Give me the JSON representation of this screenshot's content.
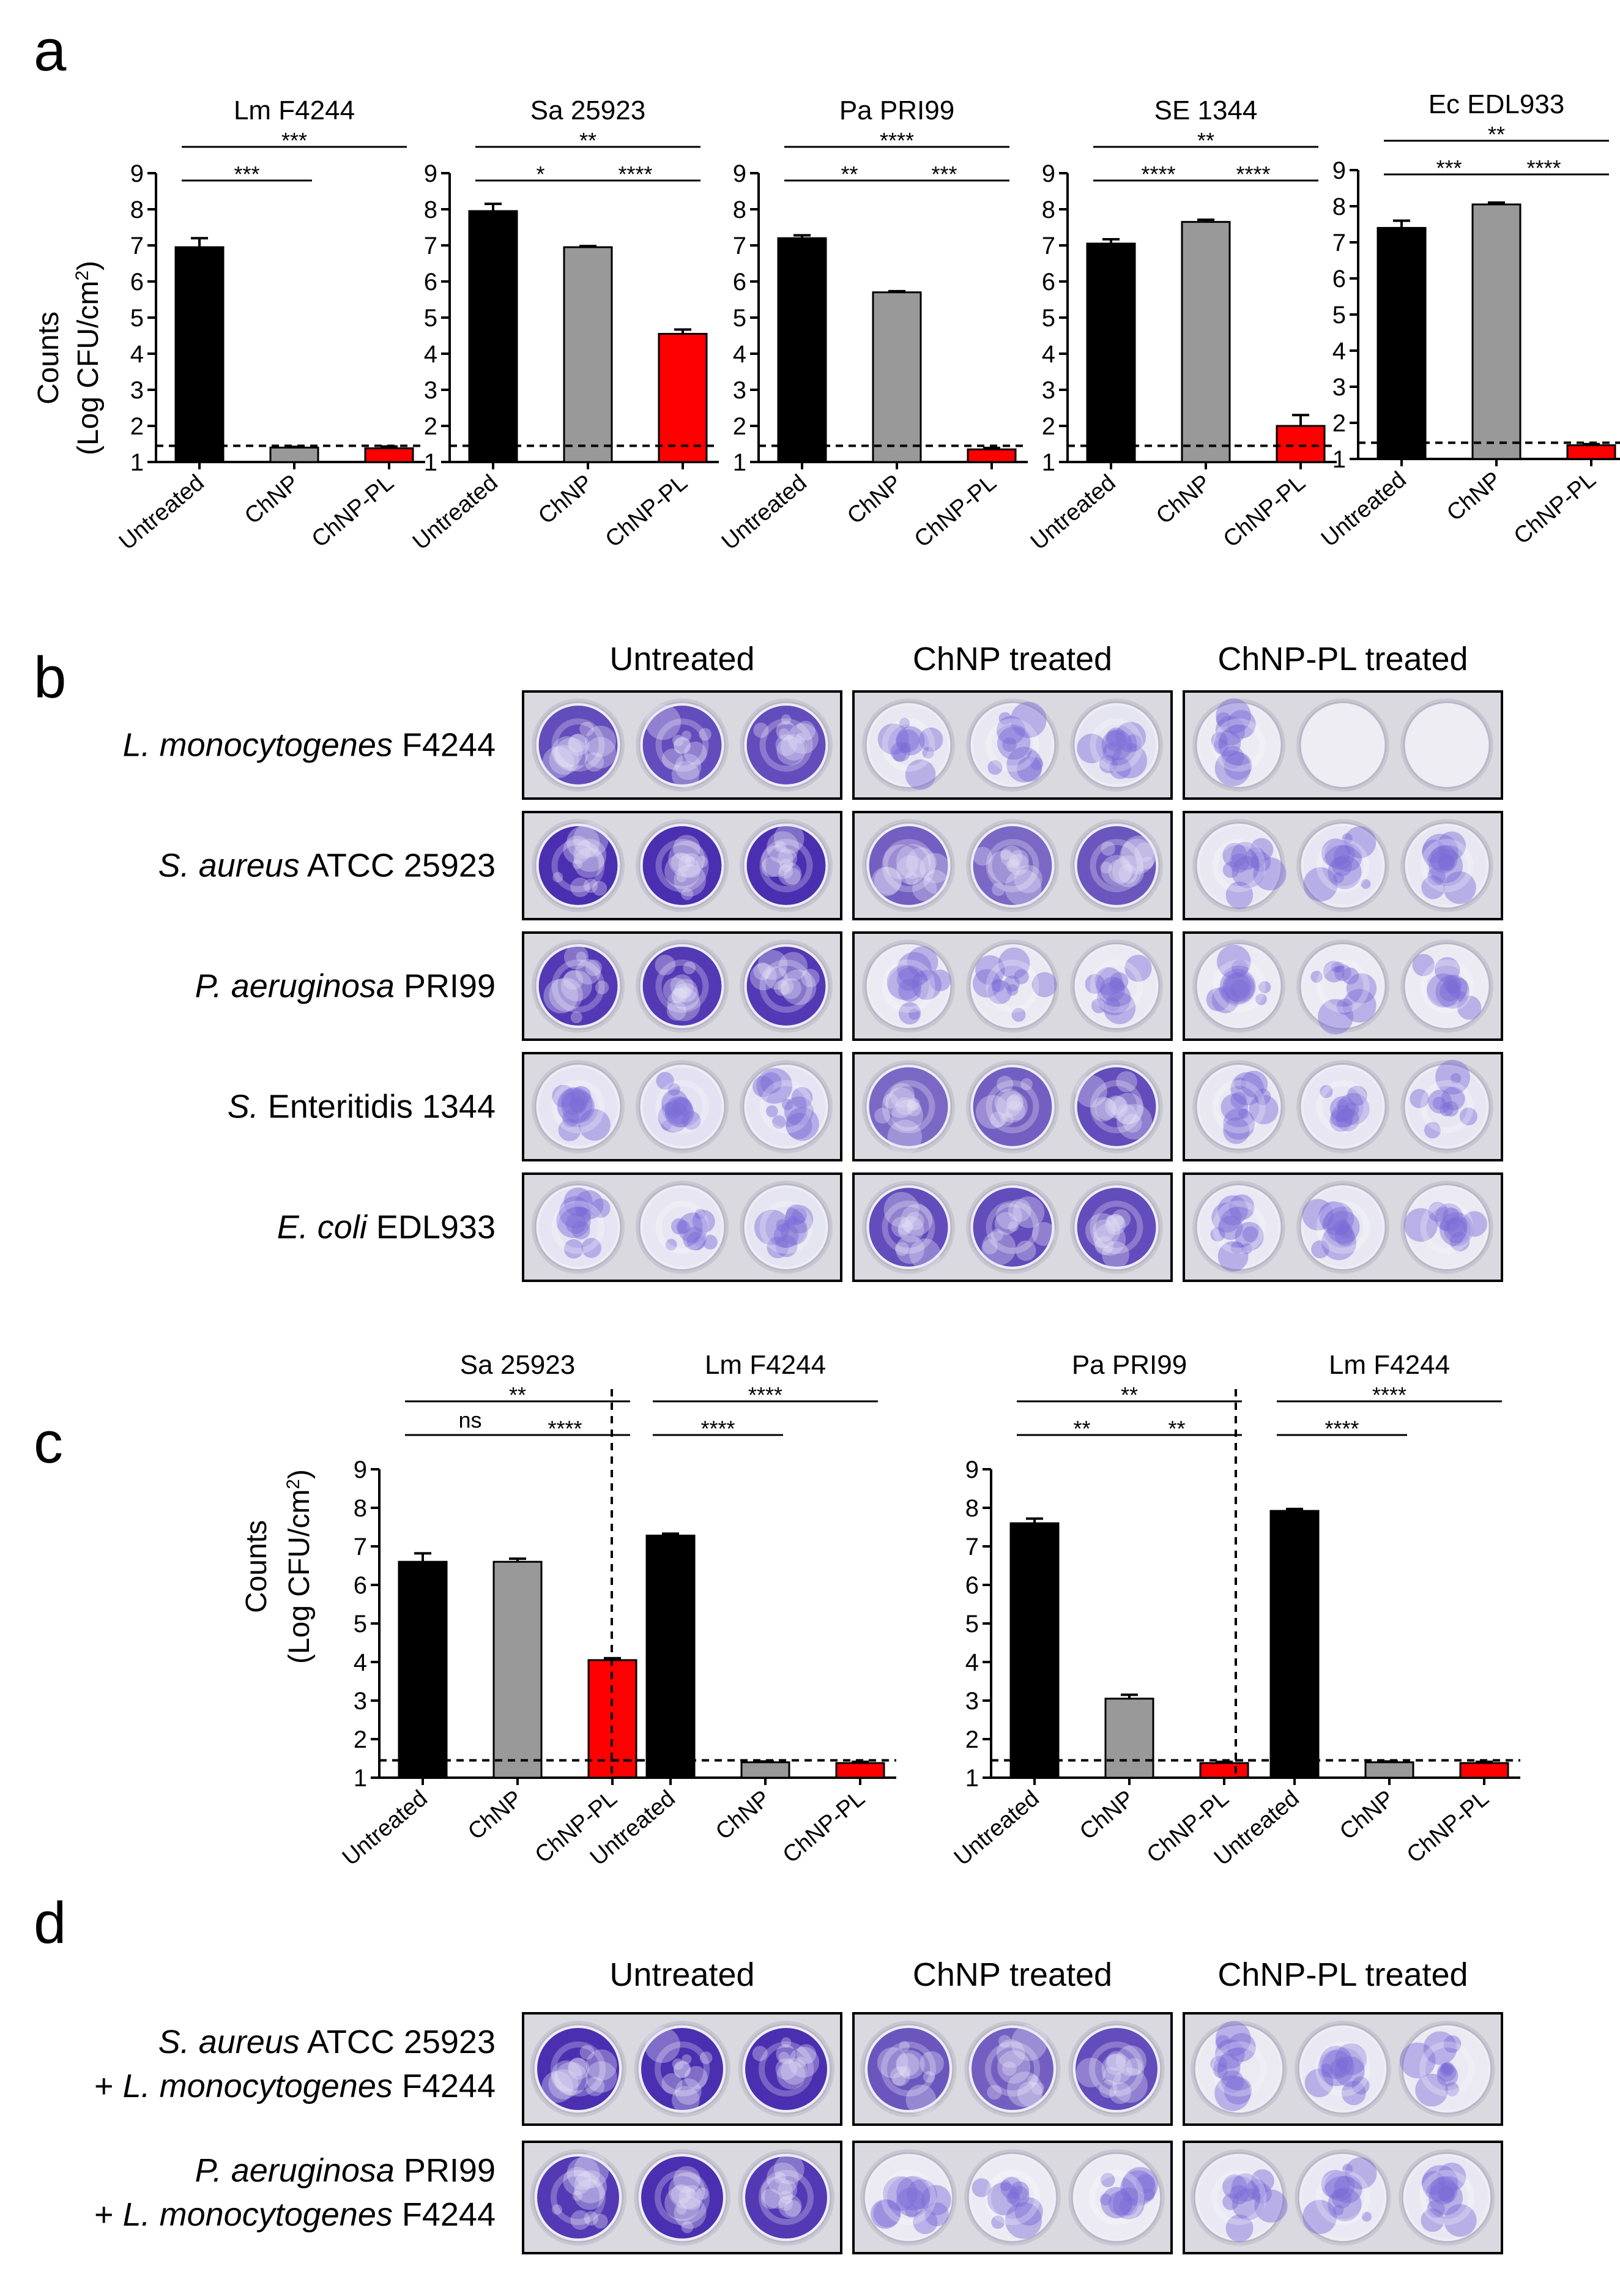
{
  "panels": {
    "a": "a",
    "b": "b",
    "c": "c",
    "d": "d"
  },
  "colors": {
    "untreated": "#000000",
    "chnp": "#999999",
    "chnp_pl": "#ff0000",
    "stain_dark": "#4a2fb0",
    "stain_mid": "#7b6ad6",
    "stain_light": "#c9c3ea",
    "well_bg": "#eeedf4",
    "plate_bg": "#d9d9df"
  },
  "ylabel_line1": "Counts",
  "ylabel_line2_prefix": "(Log CFU/cm",
  "ylabel_sup": "2",
  "ylabel_line2_suffix": ")",
  "chart_data": [
    {
      "type": "bar",
      "panel": "a",
      "title": "Lm F4244",
      "categories": [
        "Untreated",
        "ChNP",
        "ChNP-PL"
      ],
      "values": [
        6.95,
        1.4,
        1.38
      ],
      "errors": [
        0.25,
        0.02,
        0.05
      ],
      "ylim": [
        1,
        9
      ],
      "yticks": [
        1,
        2,
        3,
        4,
        5,
        6,
        7,
        8,
        9
      ],
      "detection_limit": 1.45,
      "significance": [
        {
          "from": 0,
          "to": 1,
          "label": "***",
          "level": 0
        },
        {
          "from": 0,
          "to": 2,
          "label": "***",
          "level": 1
        }
      ]
    },
    {
      "type": "bar",
      "panel": "a",
      "title": "Sa 25923",
      "categories": [
        "Untreated",
        "ChNP",
        "ChNP-PL"
      ],
      "values": [
        7.95,
        6.95,
        4.55
      ],
      "errors": [
        0.2,
        0.03,
        0.12
      ],
      "ylim": [
        1,
        9
      ],
      "yticks": [
        1,
        2,
        3,
        4,
        5,
        6,
        7,
        8,
        9
      ],
      "detection_limit": 1.45,
      "significance": [
        {
          "from": 0,
          "to": 1,
          "label": "*",
          "level": 0
        },
        {
          "from": 1,
          "to": 2,
          "label": "****",
          "level": 0
        },
        {
          "from": 0,
          "to": 2,
          "label": "**",
          "level": 1
        }
      ]
    },
    {
      "type": "bar",
      "panel": "a",
      "title": "Pa PRI99",
      "categories": [
        "Untreated",
        "ChNP",
        "ChNP-PL"
      ],
      "values": [
        7.2,
        5.7,
        1.35
      ],
      "errors": [
        0.08,
        0.03,
        0.04
      ],
      "ylim": [
        1,
        9
      ],
      "yticks": [
        1,
        2,
        3,
        4,
        5,
        6,
        7,
        8,
        9
      ],
      "detection_limit": 1.45,
      "significance": [
        {
          "from": 0,
          "to": 1,
          "label": "**",
          "level": 0
        },
        {
          "from": 1,
          "to": 2,
          "label": "***",
          "level": 0
        },
        {
          "from": 0,
          "to": 2,
          "label": "****",
          "level": 1
        }
      ]
    },
    {
      "type": "bar",
      "panel": "a",
      "title": "SE 1344",
      "categories": [
        "Untreated",
        "ChNP",
        "ChNP-PL"
      ],
      "values": [
        7.05,
        7.65,
        2.0
      ],
      "errors": [
        0.12,
        0.06,
        0.3
      ],
      "ylim": [
        1,
        9
      ],
      "yticks": [
        1,
        2,
        3,
        4,
        5,
        6,
        7,
        8,
        9
      ],
      "detection_limit": 1.45,
      "significance": [
        {
          "from": 0,
          "to": 1,
          "label": "****",
          "level": 0
        },
        {
          "from": 1,
          "to": 2,
          "label": "****",
          "level": 0
        },
        {
          "from": 0,
          "to": 2,
          "label": "**",
          "level": 1
        }
      ]
    },
    {
      "type": "bar",
      "panel": "a",
      "title": "Ec EDL933",
      "categories": [
        "Untreated",
        "ChNP",
        "ChNP-PL"
      ],
      "values": [
        7.4,
        8.05,
        1.38
      ],
      "errors": [
        0.2,
        0.05,
        0.03
      ],
      "ylim": [
        1,
        9
      ],
      "yticks": [
        1,
        2,
        3,
        4,
        5,
        6,
        7,
        8,
        9
      ],
      "detection_limit": 1.45,
      "significance": [
        {
          "from": 0,
          "to": 1,
          "label": "***",
          "level": 0
        },
        {
          "from": 1,
          "to": 2,
          "label": "****",
          "level": 0
        },
        {
          "from": 0,
          "to": 2,
          "label": "**",
          "level": 1
        }
      ]
    },
    {
      "type": "bar",
      "panel": "c",
      "title": "Sa 25923",
      "categories": [
        "Untreated",
        "ChNP",
        "ChNP-PL"
      ],
      "values": [
        6.6,
        6.6,
        4.05
      ],
      "errors": [
        0.22,
        0.08,
        0.05
      ],
      "ylim": [
        1,
        9
      ],
      "yticks": [
        1,
        2,
        3,
        4,
        5,
        6,
        7,
        8,
        9
      ],
      "detection_limit": 1.45,
      "significance": [
        {
          "from": 0,
          "to": 1,
          "label": "ns",
          "level": 0
        },
        {
          "from": 1,
          "to": 2,
          "label": "****",
          "level": 0
        },
        {
          "from": 0,
          "to": 2,
          "label": "**",
          "level": 1
        }
      ]
    },
    {
      "type": "bar",
      "panel": "c",
      "title": "Lm F4244",
      "categories": [
        "Untreated",
        "ChNP",
        "ChNP-PL"
      ],
      "values": [
        7.28,
        1.4,
        1.38
      ],
      "errors": [
        0.05,
        0.02,
        0.03
      ],
      "ylim": [
        1,
        9
      ],
      "yticks": [
        1,
        2,
        3,
        4,
        5,
        6,
        7,
        8,
        9
      ],
      "detection_limit": 1.45,
      "significance": [
        {
          "from": 0,
          "to": 1,
          "label": "****",
          "level": 0
        },
        {
          "from": 0,
          "to": 2,
          "label": "****",
          "level": 1
        }
      ]
    },
    {
      "type": "bar",
      "panel": "c",
      "title": "Pa PRI99",
      "categories": [
        "Untreated",
        "ChNP",
        "ChNP-PL"
      ],
      "values": [
        7.6,
        3.05,
        1.38
      ],
      "errors": [
        0.12,
        0.1,
        0.03
      ],
      "ylim": [
        1,
        9
      ],
      "yticks": [
        1,
        2,
        3,
        4,
        5,
        6,
        7,
        8,
        9
      ],
      "detection_limit": 1.45,
      "significance": [
        {
          "from": 0,
          "to": 1,
          "label": "**",
          "level": 0
        },
        {
          "from": 1,
          "to": 2,
          "label": "**",
          "level": 0
        },
        {
          "from": 0,
          "to": 2,
          "label": "**",
          "level": 1
        }
      ]
    },
    {
      "type": "bar",
      "panel": "c",
      "title": "Lm F4244",
      "categories": [
        "Untreated",
        "ChNP",
        "ChNP-PL"
      ],
      "values": [
        7.92,
        1.4,
        1.38
      ],
      "errors": [
        0.05,
        0.02,
        0.03
      ],
      "ylim": [
        1,
        9
      ],
      "yticks": [
        1,
        2,
        3,
        4,
        5,
        6,
        7,
        8,
        9
      ],
      "detection_limit": 1.45,
      "significance": [
        {
          "from": 0,
          "to": 1,
          "label": "****",
          "level": 0
        },
        {
          "from": 0,
          "to": 2,
          "label": "****",
          "level": 1
        }
      ]
    }
  ],
  "panel_b": {
    "column_headers": [
      "Untreated",
      "ChNP treated",
      "ChNP-PL treated"
    ],
    "rows": [
      {
        "italic": "L. monocytogenes",
        "rest": " F4244",
        "coverage": [
          [
            0.85,
            0.85,
            0.85
          ],
          [
            0.12,
            0.12,
            0.22
          ],
          [
            0.04,
            0.02,
            0.02
          ]
        ]
      },
      {
        "italic": "S. aureus",
        "rest": " ATCC 25923",
        "coverage": [
          [
            1,
            1,
            1
          ],
          [
            0.75,
            0.7,
            0.8
          ],
          [
            0.12,
            0.15,
            0.14
          ]
        ]
      },
      {
        "italic": "P. aeruginosa",
        "rest": " PRI99",
        "coverage": [
          [
            0.95,
            0.95,
            0.95
          ],
          [
            0.05,
            0.05,
            0.08
          ],
          [
            0.06,
            0.06,
            0.06
          ]
        ]
      },
      {
        "italic": "S.",
        "rest": " Enteritidis 1344",
        "coverage": [
          [
            0.2,
            0.25,
            0.2
          ],
          [
            0.7,
            0.75,
            0.85
          ],
          [
            0.12,
            0.15,
            0.15
          ]
        ]
      },
      {
        "italic": "E. coli",
        "rest": " EDL933",
        "coverage": [
          [
            0.2,
            0.15,
            0.22
          ],
          [
            0.85,
            0.85,
            0.85
          ],
          [
            0.1,
            0.12,
            0.08
          ]
        ]
      }
    ]
  },
  "panel_d": {
    "column_headers": [
      "Untreated",
      "ChNP treated",
      "ChNP-PL treated"
    ],
    "rows": [
      {
        "line1_italic": "S. aureus",
        "line1_rest": " ATCC 25923",
        "line2_prefix": "+ ",
        "line2_italic": "L. monocytogenes",
        "line2_rest": " F4244",
        "coverage": [
          [
            1,
            1,
            1
          ],
          [
            0.8,
            0.75,
            0.85
          ],
          [
            0.08,
            0.1,
            0.08
          ]
        ]
      },
      {
        "line1_italic": "P. aeruginosa",
        "line1_rest": " PRI99",
        "line2_prefix": "+ ",
        "line2_italic": "L. monocytogenes",
        "line2_rest": " F4244",
        "coverage": [
          [
            0.95,
            1,
            0.95
          ],
          [
            0.05,
            0.04,
            0.04
          ],
          [
            0.1,
            0.1,
            0.12
          ]
        ]
      }
    ]
  }
}
